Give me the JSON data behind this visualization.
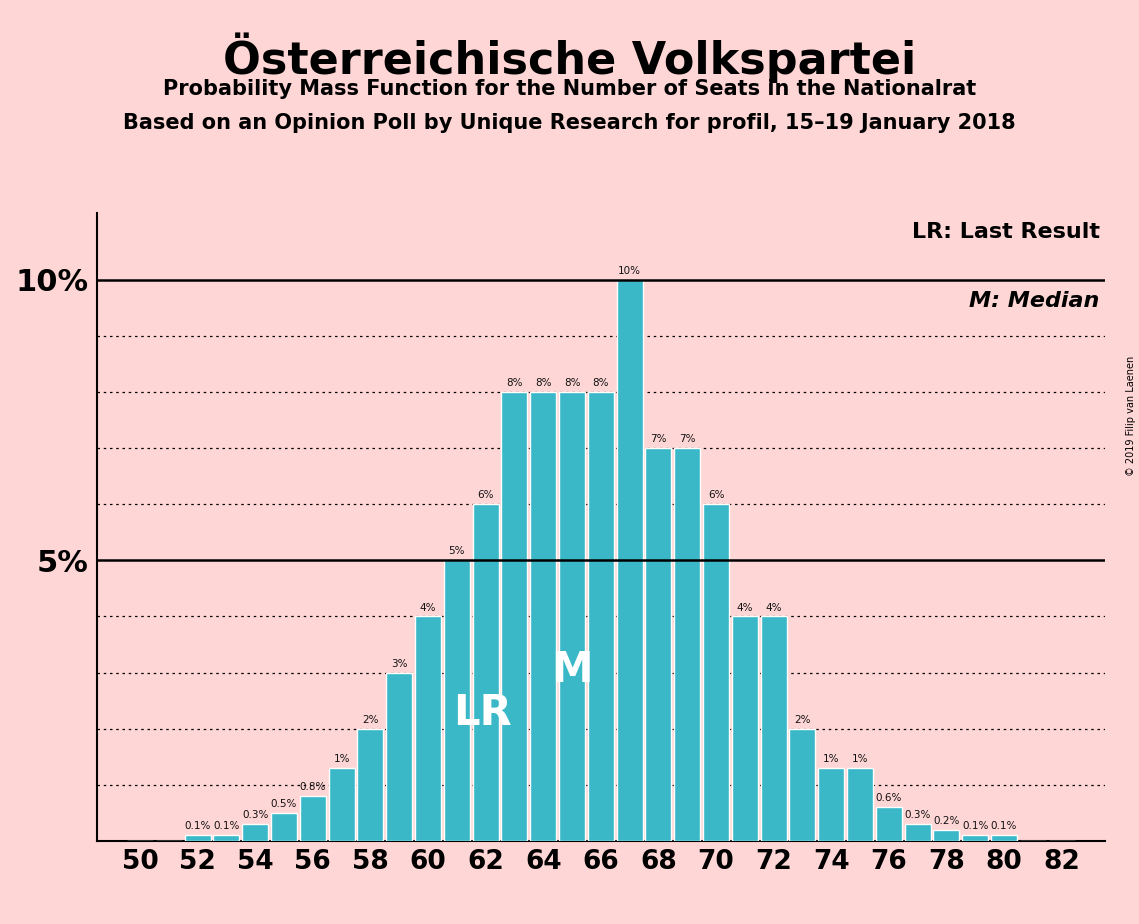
{
  "title": "Österreichische Volkspartei",
  "subtitle1": "Probability Mass Function for the Number of Seats in the Nationalrat",
  "subtitle2": "Based on an Opinion Poll by Unique Research for profil, 15–19 January 2018",
  "seats": [
    50,
    51,
    52,
    53,
    54,
    55,
    56,
    57,
    58,
    59,
    60,
    61,
    62,
    63,
    64,
    65,
    66,
    67,
    68,
    69,
    70,
    71,
    72,
    73,
    74,
    75,
    76,
    77,
    78,
    79,
    80,
    81,
    82
  ],
  "values": [
    0.0,
    0.0,
    0.1,
    0.1,
    0.3,
    0.5,
    0.8,
    1.3,
    2.0,
    3.0,
    4.0,
    5.0,
    6.0,
    8.0,
    8.0,
    8.0,
    8.0,
    10.0,
    7.0,
    7.0,
    6.0,
    4.0,
    4.0,
    2.0,
    1.3,
    1.3,
    0.6,
    0.3,
    0.2,
    0.1,
    0.1,
    0.0,
    0.0
  ],
  "bar_color": "#3ab8c8",
  "background_color": "#ffd6d6",
  "LR_seat": 62,
  "Median_seat": 65,
  "copyright_text": "© 2019 Filip van Laenen",
  "bar_width": 0.9
}
